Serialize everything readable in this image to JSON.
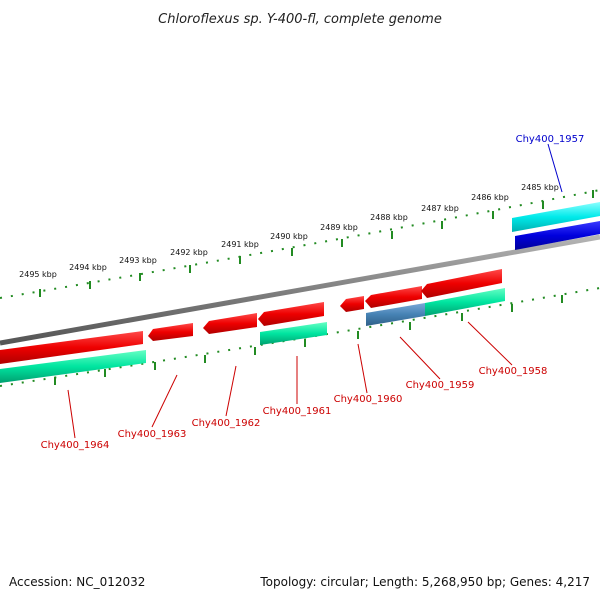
{
  "title": "Chloroflexus sp. Y-400-fl, complete genome",
  "footer": {
    "accession": "Accession: NC_012032",
    "stats": "Topology: circular; Length: 5,268,950 bp; Genes: 4,217"
  },
  "colors": {
    "backbone": "#808080",
    "forward_cds": "#00e5e5",
    "forward_gene": "#0000dd",
    "reverse_cds": "#ff0000",
    "reverse_gene": "#00e5a0",
    "reverse_other": "#4682b4",
    "tick": "#228b22",
    "label_forward": "#0000cc",
    "label_reverse": "#cc0000"
  },
  "ruler_labels": [
    "2485 kbp",
    "2486 kbp",
    "2487 kbp",
    "2488 kbp",
    "2489 kbp",
    "2490 kbp",
    "2491 kbp",
    "2492 kbp",
    "2493 kbp",
    "2494 kbp",
    "2495 kbp"
  ],
  "gene_labels": [
    {
      "text": "Chy400_1957",
      "strand": "forward"
    },
    {
      "text": "Chy400_1958",
      "strand": "reverse"
    },
    {
      "text": "Chy400_1959",
      "strand": "reverse"
    },
    {
      "text": "Chy400_1960",
      "strand": "reverse"
    },
    {
      "text": "Chy400_1961",
      "strand": "reverse"
    },
    {
      "text": "Chy400_1962",
      "strand": "reverse"
    },
    {
      "text": "Chy400_1963",
      "strand": "reverse"
    },
    {
      "text": "Chy400_1964",
      "strand": "reverse"
    }
  ]
}
